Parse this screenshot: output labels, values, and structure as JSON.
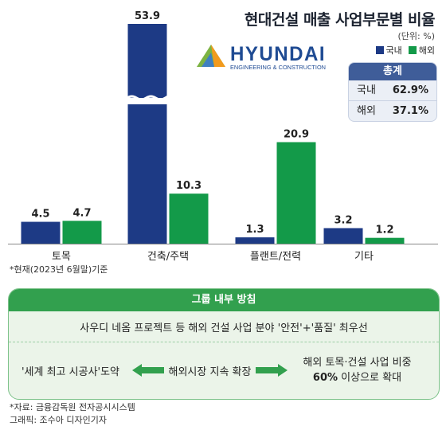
{
  "header": {
    "title": "현대건설 매출 사업부문별 비율",
    "unit": "(단위: %)",
    "legend_domestic": "국내",
    "legend_overseas": "해외"
  },
  "logo": {
    "name": "HYUNDAI",
    "tagline": "ENGINEERING & CONSTRUCTION"
  },
  "totals": {
    "header": "총계",
    "domestic_label": "국내",
    "domestic_value": "62.9%",
    "overseas_label": "해외",
    "overseas_value": "37.1%"
  },
  "colors": {
    "domestic": "#1d3a85",
    "overseas": "#139a49",
    "accent_green": "#32a04e"
  },
  "chart_data": {
    "type": "bar",
    "title": "현대건설 매출 사업부문별 비율",
    "categories": [
      "토목",
      "건축/주택",
      "플랜트/전력",
      "기타"
    ],
    "series": [
      {
        "name": "국내",
        "values": [
          4.5,
          53.9,
          1.3,
          3.2
        ]
      },
      {
        "name": "해외",
        "values": [
          4.7,
          10.3,
          20.9,
          1.2
        ]
      }
    ],
    "axis_break": true,
    "legend_position": "top-right",
    "grid": false
  },
  "footnote": "*현재(2023년 6월말)기준",
  "policy": {
    "header": "그룹 내부 방침",
    "line1": "사우디 네옴 프로젝트 등 해외 건설 사업 분야 '안전'+'품질' 최우선",
    "flow_left": "'세계 최고 시공사'도약",
    "flow_mid": "해외시장 지속 확장",
    "flow_right_1": "해외 토목·건설 사업 비중",
    "flow_right_2_bold": "60%",
    "flow_right_2_rest": " 이상으로 확대"
  },
  "source": {
    "line1": "*자료: 금융감독원 전자공시시스템",
    "line2": "그래픽: 조수아 디자인기자"
  }
}
